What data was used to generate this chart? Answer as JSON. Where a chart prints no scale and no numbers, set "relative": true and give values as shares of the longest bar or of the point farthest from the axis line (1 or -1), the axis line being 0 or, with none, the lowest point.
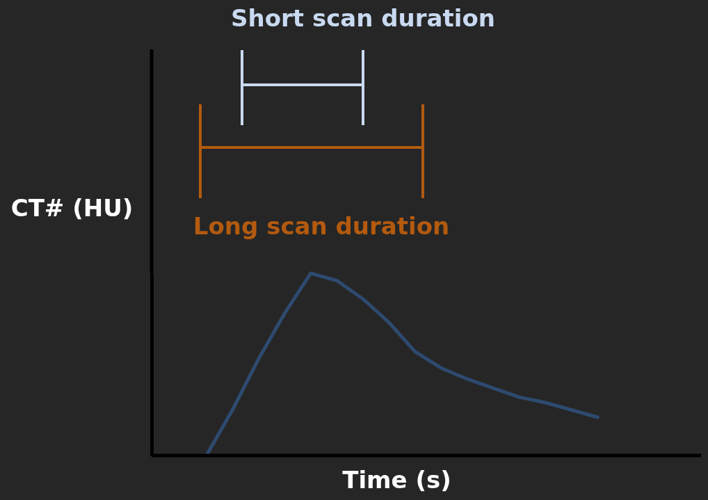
{
  "chart_data": {
    "type": "line",
    "relative": true,
    "xlabel": "Time (s)",
    "ylabel": "CT# (HU)",
    "categories": [
      null,
      null,
      null,
      null,
      null,
      null,
      null,
      null,
      null,
      null,
      null,
      null,
      null,
      null,
      null,
      null
    ],
    "series": [
      {
        "color": "#2e4a6f",
        "values": [
          0,
          0.25,
          0.53,
          0.78,
          1,
          0.96,
          0.86,
          0.73,
          0.57,
          0.48,
          0.42,
          0.37,
          0.32,
          0.29,
          0.25,
          0.21
        ]
      }
    ],
    "annotations": [
      "Short scan duration",
      "Long scan duration"
    ],
    "grid": false,
    "marker": "none",
    "line_style": "solid",
    "tick_labels": false
  }
}
